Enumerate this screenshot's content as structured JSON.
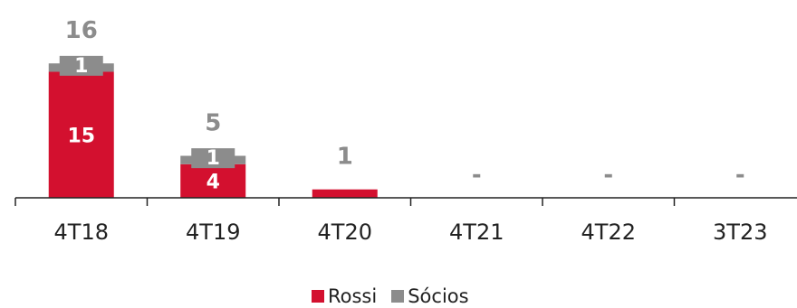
{
  "chart_data": {
    "type": "bar",
    "stacked": true,
    "categories": [
      "4T18",
      "4T19",
      "4T20",
      "4T21",
      "4T22",
      "3T23"
    ],
    "series": [
      {
        "name": "Rossi",
        "values": [
          15,
          4,
          1,
          0,
          0,
          0
        ],
        "color": "#d3102f",
        "labels": [
          "15",
          "4",
          "",
          "",
          "",
          ""
        ]
      },
      {
        "name": "Sócios",
        "values": [
          1,
          1,
          0,
          0,
          0,
          0
        ],
        "color": "#8c8c8c",
        "labels": [
          "1",
          "1",
          "",
          "",
          "",
          ""
        ]
      }
    ],
    "totals": [
      "16",
      "5",
      "1",
      "-",
      "-",
      "-"
    ],
    "grid": false,
    "legend_position": "bottom"
  }
}
